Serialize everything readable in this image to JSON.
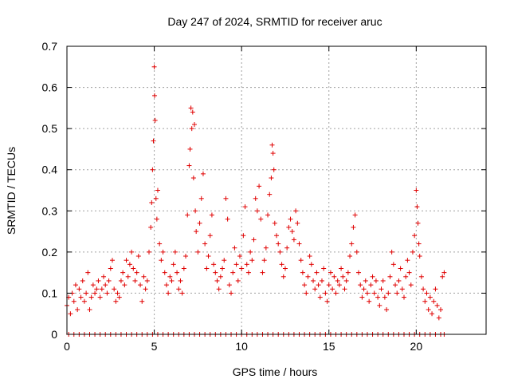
{
  "chart_data": {
    "type": "scatter",
    "title": "Day 247 of 2024, SRMTID for receiver aruc",
    "xlabel": "GPS time / hours",
    "ylabel": "SRMTID / TECUs",
    "xlim": [
      0,
      24
    ],
    "ylim": [
      0,
      0.7
    ],
    "x_ticks": [
      "0",
      "5",
      "10",
      "15",
      "20"
    ],
    "y_ticks": [
      "0",
      "0.1",
      "0.2",
      "0.3",
      "0.4",
      "0.5",
      "0.6",
      "0.7"
    ],
    "grid": true,
    "marker": "+",
    "color": "#e00000",
    "series": [
      {
        "name": "SRMTID",
        "points": [
          [
            0.0,
            0.07
          ],
          [
            0.1,
            0.09
          ],
          [
            0.2,
            0.05
          ],
          [
            0.3,
            0.1
          ],
          [
            0.4,
            0.08
          ],
          [
            0.5,
            0.12
          ],
          [
            0.6,
            0.06
          ],
          [
            0.7,
            0.11
          ],
          [
            0.8,
            0.09
          ],
          [
            0.9,
            0.13
          ],
          [
            1.0,
            0.08
          ],
          [
            1.1,
            0.1
          ],
          [
            1.2,
            0.15
          ],
          [
            1.3,
            0.06
          ],
          [
            1.4,
            0.09
          ],
          [
            1.5,
            0.12
          ],
          [
            1.6,
            0.1
          ],
          [
            1.7,
            0.11
          ],
          [
            1.8,
            0.13
          ],
          [
            1.9,
            0.09
          ],
          [
            2.0,
            0.11
          ],
          [
            2.1,
            0.14
          ],
          [
            2.2,
            0.12
          ],
          [
            2.3,
            0.1
          ],
          [
            2.4,
            0.13
          ],
          [
            2.5,
            0.16
          ],
          [
            2.6,
            0.18
          ],
          [
            2.7,
            0.11
          ],
          [
            2.8,
            0.08
          ],
          [
            2.9,
            0.1
          ],
          [
            3.0,
            0.09
          ],
          [
            3.1,
            0.13
          ],
          [
            3.2,
            0.15
          ],
          [
            3.3,
            0.12
          ],
          [
            3.4,
            0.18
          ],
          [
            3.5,
            0.14
          ],
          [
            3.6,
            0.17
          ],
          [
            3.7,
            0.2
          ],
          [
            3.8,
            0.16
          ],
          [
            3.9,
            0.13
          ],
          [
            4.0,
            0.15
          ],
          [
            4.1,
            0.19
          ],
          [
            4.2,
            0.12
          ],
          [
            4.3,
            0.08
          ],
          [
            4.4,
            0.14
          ],
          [
            4.5,
            0.11
          ],
          [
            4.6,
            0.13
          ],
          [
            4.7,
            0.2
          ],
          [
            4.8,
            0.26
          ],
          [
            4.85,
            0.32
          ],
          [
            4.9,
            0.4
          ],
          [
            4.95,
            0.47
          ],
          [
            5.0,
            0.65
          ],
          [
            5.02,
            0.58
          ],
          [
            5.05,
            0.52
          ],
          [
            5.1,
            0.33
          ],
          [
            5.15,
            0.28
          ],
          [
            5.2,
            0.35
          ],
          [
            5.3,
            0.22
          ],
          [
            5.4,
            0.18
          ],
          [
            5.5,
            0.2
          ],
          [
            5.6,
            0.15
          ],
          [
            5.7,
            0.12
          ],
          [
            5.8,
            0.1
          ],
          [
            5.9,
            0.14
          ],
          [
            6.0,
            0.13
          ],
          [
            6.1,
            0.17
          ],
          [
            6.2,
            0.2
          ],
          [
            6.3,
            0.15
          ],
          [
            6.4,
            0.11
          ],
          [
            6.5,
            0.13
          ],
          [
            6.6,
            0.1
          ],
          [
            6.7,
            0.16
          ],
          [
            6.8,
            0.19
          ],
          [
            6.9,
            0.29
          ],
          [
            7.0,
            0.41
          ],
          [
            7.05,
            0.45
          ],
          [
            7.1,
            0.55
          ],
          [
            7.15,
            0.5
          ],
          [
            7.2,
            0.54
          ],
          [
            7.25,
            0.38
          ],
          [
            7.3,
            0.51
          ],
          [
            7.35,
            0.3
          ],
          [
            7.4,
            0.25
          ],
          [
            7.5,
            0.2
          ],
          [
            7.6,
            0.27
          ],
          [
            7.7,
            0.33
          ],
          [
            7.8,
            0.39
          ],
          [
            7.9,
            0.22
          ],
          [
            8.0,
            0.16
          ],
          [
            8.1,
            0.19
          ],
          [
            8.2,
            0.24
          ],
          [
            8.3,
            0.29
          ],
          [
            8.4,
            0.17
          ],
          [
            8.5,
            0.15
          ],
          [
            8.6,
            0.13
          ],
          [
            8.7,
            0.11
          ],
          [
            8.8,
            0.14
          ],
          [
            8.9,
            0.16
          ],
          [
            9.0,
            0.18
          ],
          [
            9.1,
            0.33
          ],
          [
            9.2,
            0.28
          ],
          [
            9.3,
            0.12
          ],
          [
            9.4,
            0.1
          ],
          [
            9.5,
            0.15
          ],
          [
            9.6,
            0.21
          ],
          [
            9.7,
            0.17
          ],
          [
            9.8,
            0.13
          ],
          [
            9.9,
            0.19
          ],
          [
            10.0,
            0.16
          ],
          [
            10.1,
            0.24
          ],
          [
            10.2,
            0.31
          ],
          [
            10.3,
            0.17
          ],
          [
            10.4,
            0.15
          ],
          [
            10.5,
            0.2
          ],
          [
            10.6,
            0.18
          ],
          [
            10.7,
            0.23
          ],
          [
            10.8,
            0.33
          ],
          [
            10.9,
            0.3
          ],
          [
            11.0,
            0.36
          ],
          [
            11.1,
            0.28
          ],
          [
            11.2,
            0.15
          ],
          [
            11.3,
            0.18
          ],
          [
            11.4,
            0.21
          ],
          [
            11.5,
            0.29
          ],
          [
            11.6,
            0.34
          ],
          [
            11.7,
            0.38
          ],
          [
            11.75,
            0.46
          ],
          [
            11.8,
            0.44
          ],
          [
            11.85,
            0.4
          ],
          [
            11.9,
            0.27
          ],
          [
            12.0,
            0.24
          ],
          [
            12.1,
            0.22
          ],
          [
            12.2,
            0.2
          ],
          [
            12.3,
            0.17
          ],
          [
            12.4,
            0.14
          ],
          [
            12.5,
            0.16
          ],
          [
            12.6,
            0.21
          ],
          [
            12.7,
            0.26
          ],
          [
            12.8,
            0.28
          ],
          [
            12.9,
            0.25
          ],
          [
            13.0,
            0.23
          ],
          [
            13.1,
            0.3
          ],
          [
            13.2,
            0.27
          ],
          [
            13.3,
            0.22
          ],
          [
            13.4,
            0.18
          ],
          [
            13.5,
            0.15
          ],
          [
            13.6,
            0.12
          ],
          [
            13.7,
            0.1
          ],
          [
            13.8,
            0.14
          ],
          [
            13.9,
            0.19
          ],
          [
            14.0,
            0.17
          ],
          [
            14.1,
            0.13
          ],
          [
            14.2,
            0.11
          ],
          [
            14.3,
            0.15
          ],
          [
            14.4,
            0.12
          ],
          [
            14.5,
            0.09
          ],
          [
            14.6,
            0.13
          ],
          [
            14.7,
            0.16
          ],
          [
            14.8,
            0.1
          ],
          [
            14.9,
            0.08
          ],
          [
            15.0,
            0.12
          ],
          [
            15.1,
            0.15
          ],
          [
            15.2,
            0.11
          ],
          [
            15.3,
            0.14
          ],
          [
            15.4,
            0.1
          ],
          [
            15.5,
            0.13
          ],
          [
            15.6,
            0.12
          ],
          [
            15.7,
            0.16
          ],
          [
            15.8,
            0.14
          ],
          [
            15.9,
            0.11
          ],
          [
            16.0,
            0.13
          ],
          [
            16.1,
            0.15
          ],
          [
            16.2,
            0.19
          ],
          [
            16.3,
            0.22
          ],
          [
            16.4,
            0.26
          ],
          [
            16.5,
            0.29
          ],
          [
            16.6,
            0.2
          ],
          [
            16.7,
            0.15
          ],
          [
            16.8,
            0.12
          ],
          [
            16.9,
            0.09
          ],
          [
            17.0,
            0.11
          ],
          [
            17.1,
            0.13
          ],
          [
            17.2,
            0.1
          ],
          [
            17.3,
            0.08
          ],
          [
            17.4,
            0.12
          ],
          [
            17.5,
            0.14
          ],
          [
            17.6,
            0.1
          ],
          [
            17.7,
            0.13
          ],
          [
            17.8,
            0.09
          ],
          [
            17.9,
            0.07
          ],
          [
            18.0,
            0.11
          ],
          [
            18.1,
            0.13
          ],
          [
            18.2,
            0.09
          ],
          [
            18.3,
            0.06
          ],
          [
            18.4,
            0.1
          ],
          [
            18.5,
            0.14
          ],
          [
            18.6,
            0.2
          ],
          [
            18.7,
            0.17
          ],
          [
            18.8,
            0.12
          ],
          [
            18.9,
            0.1
          ],
          [
            19.0,
            0.13
          ],
          [
            19.1,
            0.16
          ],
          [
            19.2,
            0.11
          ],
          [
            19.3,
            0.09
          ],
          [
            19.4,
            0.14
          ],
          [
            19.5,
            0.18
          ],
          [
            19.6,
            0.15
          ],
          [
            19.7,
            0.12
          ],
          [
            19.8,
            0.2
          ],
          [
            19.9,
            0.24
          ],
          [
            20.0,
            0.35
          ],
          [
            20.05,
            0.31
          ],
          [
            20.1,
            0.27
          ],
          [
            20.15,
            0.22
          ],
          [
            20.2,
            0.19
          ],
          [
            20.3,
            0.14
          ],
          [
            20.4,
            0.11
          ],
          [
            20.5,
            0.08
          ],
          [
            20.6,
            0.1
          ],
          [
            20.7,
            0.06
          ],
          [
            20.8,
            0.09
          ],
          [
            20.9,
            0.05
          ],
          [
            21.0,
            0.08
          ],
          [
            21.1,
            0.11
          ],
          [
            21.2,
            0.07
          ],
          [
            21.3,
            0.04
          ],
          [
            21.4,
            0.06
          ],
          [
            21.5,
            0.14
          ],
          [
            21.6,
            0.15
          ]
        ],
        "zero_x": [
          0.1,
          0.4,
          0.7,
          1.0,
          1.3,
          1.6,
          1.9,
          2.2,
          2.5,
          2.8,
          3.1,
          3.4,
          3.7,
          4.0,
          4.3,
          4.6,
          4.9,
          5.2,
          5.5,
          5.8,
          6.1,
          6.4,
          6.7,
          7.0,
          7.3,
          7.6,
          7.9,
          8.2,
          8.5,
          8.8,
          9.1,
          9.4,
          9.7,
          10.0,
          10.3,
          10.6,
          10.9,
          11.2,
          11.5,
          11.8,
          12.1,
          12.4,
          12.7,
          13.0,
          13.3,
          13.6,
          13.9,
          14.2,
          14.5,
          14.8,
          15.1,
          15.4,
          15.7,
          16.0,
          16.3,
          16.6,
          16.9,
          17.2,
          17.5,
          17.8,
          18.1,
          18.4,
          18.7,
          19.0,
          19.3,
          19.6,
          19.9,
          20.2,
          20.5,
          20.8,
          21.1,
          21.4,
          21.6
        ]
      }
    ]
  }
}
